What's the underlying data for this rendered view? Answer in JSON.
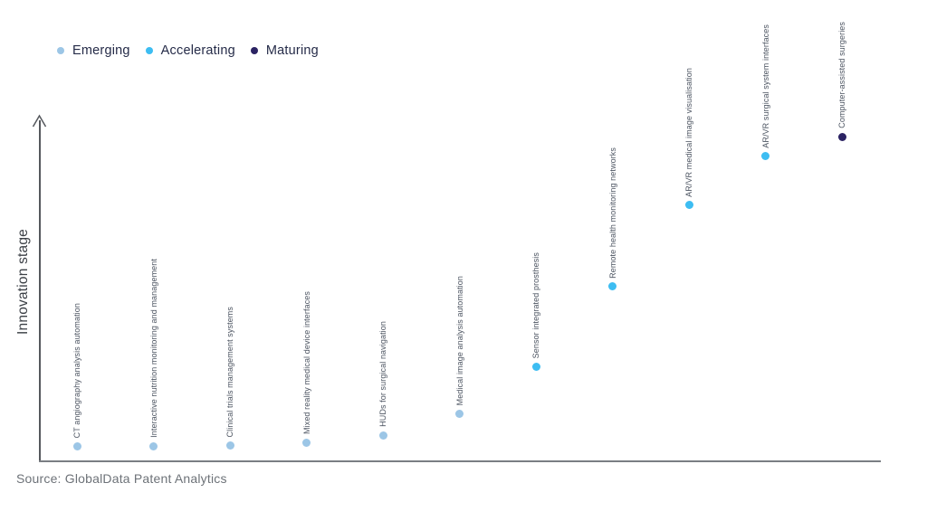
{
  "legend": {
    "items": [
      {
        "label": "Emerging",
        "stage": "emerging"
      },
      {
        "label": "Accelerating",
        "stage": "accelerating"
      },
      {
        "label": "Maturing",
        "stage": "maturing"
      }
    ]
  },
  "source": "Source: GlobalData Patent Analytics",
  "chart_data": {
    "type": "scatter",
    "title": "",
    "xlabel": "",
    "ylabel": "Innovation stage",
    "grid": false,
    "legend_position": "top-left",
    "y_axis": {
      "style": "arrow",
      "ticks": "none",
      "range_semantics": "qualitative 0-1 innovation stage"
    },
    "stage_colors": {
      "emerging": "#9cc6e6",
      "accelerating": "#3dbdf2",
      "maturing": "#2b2363"
    },
    "points": [
      {
        "label": "CT angiography analysis automation",
        "stage": "emerging",
        "innovation_level": 0.045
      },
      {
        "label": "Interactive nutrition monitoring and management",
        "stage": "emerging",
        "innovation_level": 0.045
      },
      {
        "label": "Clinical trials management systems",
        "stage": "emerging",
        "innovation_level": 0.048
      },
      {
        "label": "Mixed reality medical device interfaces",
        "stage": "emerging",
        "innovation_level": 0.056
      },
      {
        "label": "HUDs for surgical navigation",
        "stage": "emerging",
        "innovation_level": 0.077
      },
      {
        "label": "Medical image analysis automation",
        "stage": "emerging",
        "innovation_level": 0.141
      },
      {
        "label": "Sensor integrated prosthesis",
        "stage": "accelerating",
        "innovation_level": 0.28
      },
      {
        "label": "Remote health monitoring networks",
        "stage": "accelerating",
        "innovation_level": 0.515
      },
      {
        "label": "AR/VR medical image visualisation",
        "stage": "accelerating",
        "innovation_level": 0.755
      },
      {
        "label": "AR/VR surgical system interfaces",
        "stage": "accelerating",
        "innovation_level": 0.899
      },
      {
        "label": "Computer-assisted surgeries",
        "stage": "maturing",
        "innovation_level": 0.957
      }
    ]
  }
}
